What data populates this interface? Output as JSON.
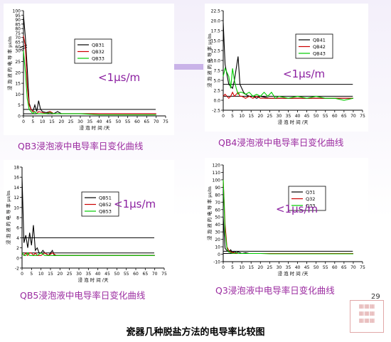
{
  "page_title": "瓷器几种脱盐方法的电导率比较图",
  "page_number": "29",
  "seal_text": "图片来源",
  "colors": {
    "black": "#000000",
    "red": "#cc0000",
    "green": "#00cc00",
    "caption": "#9b2ba0",
    "note": "#8b1fa0",
    "accent_bar": "#c9b3e8"
  },
  "chart_data": [
    {
      "type": "line",
      "caption": "QB3浸泡液中电导率日变化曲线",
      "note": "<1μs/m",
      "xlabel": "浸 泡 时 间 /天",
      "ylabel": "浸 泡 液 的 电 导 率 μs/m",
      "xlim": [
        0,
        75
      ],
      "y_ticks": [
        "0",
        "5",
        "10",
        "15",
        "20",
        "25",
        "30",
        "60",
        "65",
        "70",
        "75",
        "80",
        "85",
        "90",
        "95",
        "100"
      ],
      "x_ticks": [
        "0",
        "5",
        "10",
        "15",
        "20",
        "25",
        "30",
        "35",
        "40",
        "45",
        "50",
        "55",
        "60",
        "65",
        "70",
        "75"
      ],
      "hlines": [
        1,
        3
      ],
      "series": [
        {
          "name": "QB31",
          "color": "#000000",
          "x": [
            0,
            1,
            2,
            3,
            4,
            5,
            6,
            7,
            8,
            9,
            10,
            12,
            14,
            16,
            18,
            20,
            25,
            30,
            35,
            40,
            50,
            60,
            70
          ],
          "y": [
            95,
            70,
            22,
            6,
            3,
            2,
            5,
            2,
            7,
            3,
            2,
            1.5,
            2,
            1,
            2,
            1,
            1,
            1,
            1,
            1,
            1,
            1,
            1
          ]
        },
        {
          "name": "QB32",
          "color": "#cc0000",
          "x": [
            0,
            1,
            2,
            3,
            4,
            5,
            6,
            7,
            8,
            10,
            12,
            14,
            16,
            18,
            20,
            25,
            30,
            40,
            50,
            60,
            70
          ],
          "y": [
            72,
            45,
            14,
            5,
            3,
            2,
            2,
            1,
            2,
            1.5,
            1,
            2,
            1,
            1,
            1,
            1,
            1,
            1,
            1,
            1,
            1
          ]
        },
        {
          "name": "QB33",
          "color": "#00cc00",
          "x": [
            0,
            1,
            2,
            3,
            4,
            5,
            6,
            7,
            8,
            10,
            12,
            14,
            16,
            18,
            20,
            25,
            30,
            40,
            50,
            60,
            70
          ],
          "y": [
            30,
            20,
            8,
            3,
            2,
            1,
            2,
            1,
            1,
            1,
            1,
            1.5,
            1,
            1,
            1,
            1,
            1,
            0.5,
            0.5,
            0.5,
            0.5
          ]
        }
      ]
    },
    {
      "type": "line",
      "caption": "QB4浸泡液中电导率日变化曲线",
      "note": "<1μs/m",
      "xlabel": "浸 泡 时 间 /天",
      "ylabel": "浸 泡 液 的 电 导 率 μs/m",
      "xlim": [
        0,
        75
      ],
      "ylim": [
        -2.5,
        22.5
      ],
      "y_ticks": [
        "-2.5",
        "0.0",
        "2.5",
        "5.0",
        "7.5",
        "10.0",
        "12.5",
        "15.0",
        "17.5",
        "20.0",
        "22.5"
      ],
      "x_ticks": [
        "0",
        "5",
        "10",
        "15",
        "20",
        "25",
        "30",
        "35",
        "40",
        "45",
        "50",
        "55",
        "60",
        "65",
        "70",
        "75"
      ],
      "hlines": [
        1,
        4
      ],
      "series": [
        {
          "name": "QB41",
          "color": "#000000",
          "x": [
            0,
            1,
            2,
            3,
            4,
            5,
            6,
            7,
            8,
            9,
            10,
            11,
            12,
            14,
            16,
            18,
            20,
            25,
            30,
            40,
            50,
            60,
            65,
            70
          ],
          "y": [
            19.5,
            9,
            6.5,
            4,
            3.5,
            3,
            5,
            8,
            11,
            4,
            3,
            2,
            1.5,
            1,
            1,
            0.5,
            1,
            0.5,
            0.5,
            0.5,
            0.5,
            0.5,
            0.5,
            0.5
          ]
        },
        {
          "name": "QB42",
          "color": "#cc0000",
          "x": [
            0,
            1,
            2,
            3,
            4,
            5,
            6,
            7,
            8,
            9,
            10,
            12,
            14,
            16,
            18,
            20,
            25,
            30,
            40,
            50,
            60,
            65,
            70
          ],
          "y": [
            1,
            1.5,
            1,
            0.5,
            1,
            2,
            1,
            1.5,
            2,
            1,
            1,
            0.5,
            1,
            0.5,
            1,
            0.5,
            0.5,
            0.5,
            0.5,
            0.5,
            0.5,
            0.5,
            0.5
          ]
        },
        {
          "name": "QB43",
          "color": "#00cc00",
          "x": [
            0,
            1,
            2,
            3,
            4,
            5,
            6,
            7,
            8,
            9,
            10,
            12,
            14,
            16,
            18,
            20,
            22,
            24,
            26,
            28,
            30,
            35,
            40,
            45,
            50,
            55,
            60,
            65,
            70
          ],
          "y": [
            6,
            8,
            7,
            6,
            3,
            8,
            5,
            3,
            1.5,
            2,
            2,
            1.5,
            2,
            1,
            1.5,
            1,
            2,
            1,
            2,
            0.5,
            1,
            0.5,
            1,
            0.5,
            1,
            0.5,
            0.5,
            0,
            0.5
          ]
        }
      ]
    },
    {
      "type": "line",
      "caption": "QB5浸泡液中电导率日变化曲线",
      "note": "<1μs/m",
      "xlabel": "浸 泡 时 间 /天",
      "ylabel": "浸 泡 液 的 电 导 率 μs/m",
      "xlim": [
        0,
        75
      ],
      "ylim": [
        -2,
        18
      ],
      "y_ticks": [
        "-2",
        "0",
        "2",
        "4",
        "6",
        "8",
        "10",
        "12",
        "14",
        "16",
        "18"
      ],
      "x_ticks": [
        "0",
        "5",
        "10",
        "15",
        "20",
        "25",
        "30",
        "35",
        "40",
        "45",
        "50",
        "55",
        "60",
        "65",
        "70",
        "75"
      ],
      "hlines": [
        1,
        4
      ],
      "series": [
        {
          "name": "QB51",
          "color": "#000000",
          "x": [
            0,
            1,
            2,
            3,
            4,
            5,
            6,
            7,
            8,
            9,
            10,
            11,
            12,
            14,
            15,
            16,
            17,
            18,
            20,
            22,
            25,
            30,
            35,
            40,
            50,
            60,
            70
          ],
          "y": [
            16,
            3,
            4.5,
            2,
            5,
            2.5,
            6.5,
            1.5,
            2,
            1,
            1,
            1.5,
            1,
            0.5,
            1,
            1.5,
            0.5,
            0.5,
            0.5,
            0.5,
            0.5,
            0.5,
            0.5,
            0.5,
            0.5,
            0.5,
            0.5
          ]
        },
        {
          "name": "QB52",
          "color": "#cc0000",
          "x": [
            0,
            1,
            2,
            3,
            4,
            5,
            6,
            7,
            8,
            10,
            12,
            14,
            16,
            18,
            20,
            25,
            30,
            40,
            50,
            60,
            70
          ],
          "y": [
            1,
            0.5,
            1,
            0.5,
            1,
            1,
            0.5,
            1,
            0.5,
            0.5,
            1,
            0.5,
            1,
            0.5,
            0.5,
            0.5,
            0.5,
            0.5,
            0.5,
            0.5,
            0.5
          ]
        },
        {
          "name": "QB53",
          "color": "#00cc00",
          "x": [
            0,
            1,
            2,
            3,
            4,
            5,
            6,
            7,
            8,
            10,
            12,
            14,
            16,
            18,
            20,
            25,
            30,
            40,
            50,
            60,
            70
          ],
          "y": [
            1,
            0.5,
            0.5,
            1,
            0.5,
            0.5,
            0.5,
            0.5,
            0.5,
            1,
            0.5,
            0.5,
            0.5,
            0.5,
            0.5,
            0.5,
            0.5,
            0.5,
            0.5,
            0.5,
            0.5
          ]
        }
      ]
    },
    {
      "type": "line",
      "caption": "Q3浸泡液中电导率日变化曲线",
      "note": "<1μs/m",
      "xlabel": "浸 泡 时 间 /天",
      "ylabel": "浸 泡 液 的 电 导 率 μs/m",
      "xlim": [
        0,
        75
      ],
      "ylim": [
        -10,
        120
      ],
      "y_ticks": [
        "-10",
        "0",
        "10",
        "20",
        "30",
        "40",
        "50",
        "60",
        "70",
        "80",
        "90",
        "100",
        "110",
        "120"
      ],
      "x_ticks": [
        "0",
        "5",
        "10",
        "15",
        "20",
        "25",
        "30",
        "35",
        "40",
        "45",
        "50",
        "55",
        "60",
        "65",
        "70",
        "75"
      ],
      "hlines": [
        1,
        4
      ],
      "series": [
        {
          "name": "Q31",
          "color": "#000000",
          "x": [
            0,
            1,
            2,
            3,
            4,
            5,
            6,
            7,
            8,
            9,
            10,
            12,
            14,
            16,
            18,
            20,
            25,
            30,
            40,
            50,
            60,
            70
          ],
          "y": [
            50,
            8,
            5,
            3,
            6,
            2,
            4,
            2,
            3,
            2,
            1,
            2,
            1,
            1,
            1,
            1,
            1,
            1,
            1,
            1,
            1,
            1
          ]
        },
        {
          "name": "Q32",
          "color": "#cc0000",
          "x": [
            0,
            1,
            2,
            3,
            4,
            5,
            6,
            7,
            8,
            10,
            12,
            14,
            16,
            18,
            20,
            25,
            30,
            40,
            50,
            60,
            70
          ],
          "y": [
            100,
            40,
            10,
            5,
            3,
            2,
            2,
            1,
            1,
            1,
            1,
            1,
            1,
            1,
            1,
            1,
            1,
            1,
            1,
            1,
            1
          ]
        },
        {
          "name": "Q33",
          "color": "#00cc00",
          "x": [
            0,
            1,
            2,
            3,
            4,
            5,
            6,
            7,
            8,
            10,
            12,
            14,
            16,
            18,
            20,
            25,
            30,
            40,
            50,
            60,
            70
          ],
          "y": [
            100,
            30,
            8,
            3,
            2,
            1,
            1,
            2,
            1,
            1,
            1,
            1,
            1,
            1,
            1,
            0.5,
            0.5,
            0.5,
            0.5,
            0.5,
            0.5
          ]
        }
      ]
    }
  ]
}
